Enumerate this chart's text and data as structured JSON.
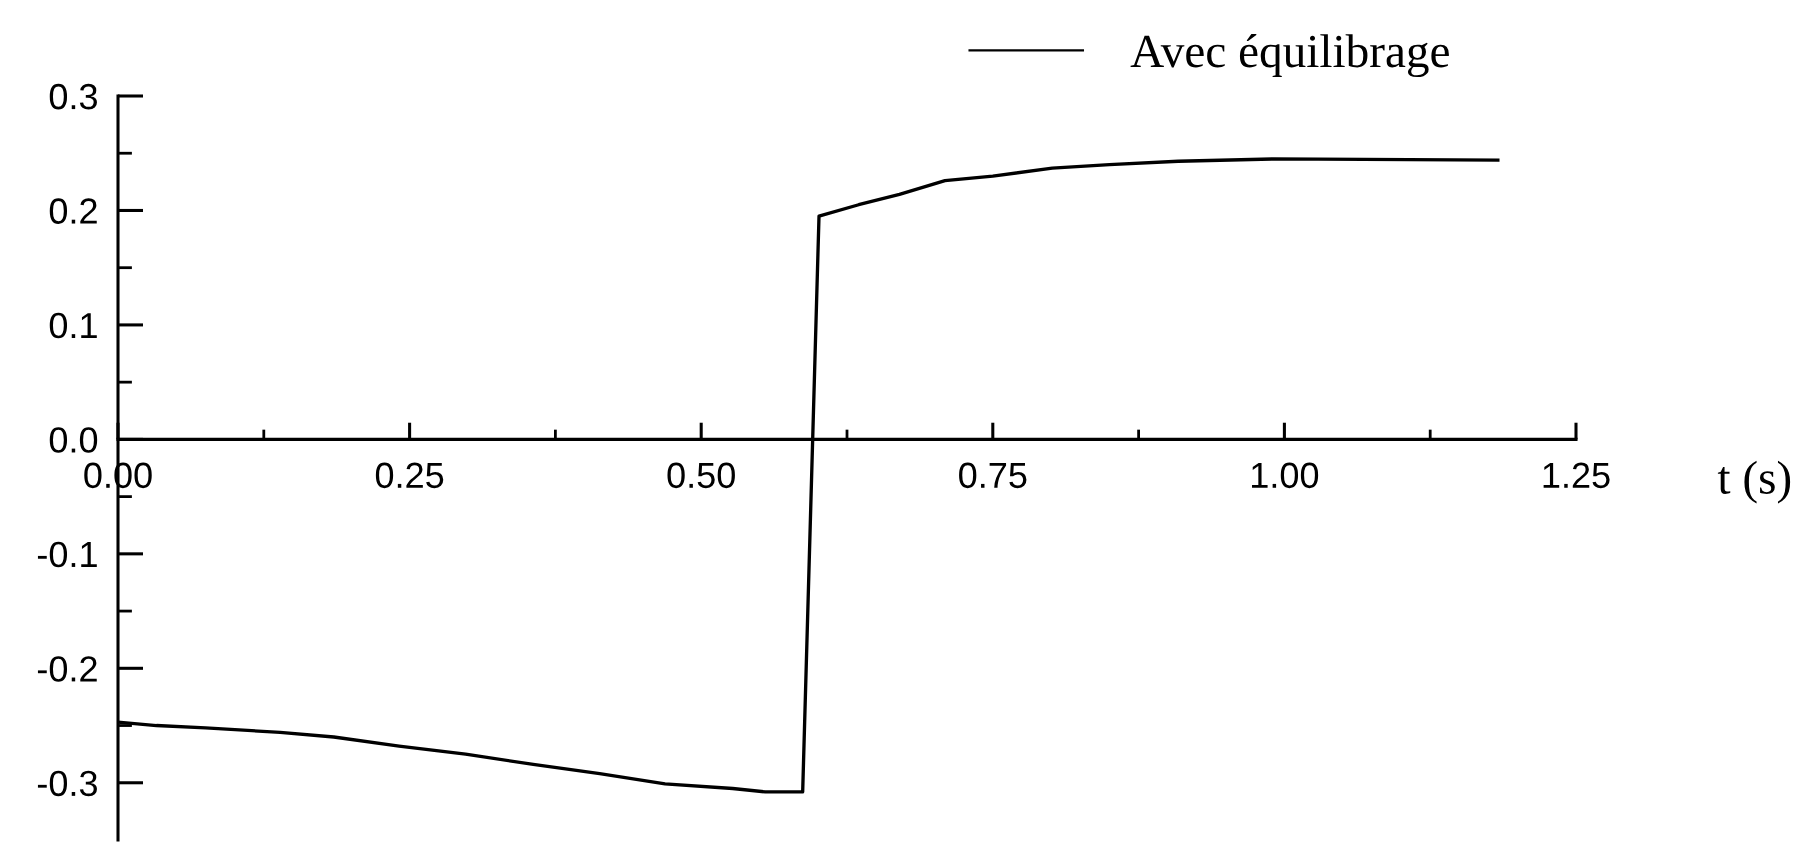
{
  "chart_data": {
    "type": "line",
    "xlabel": "t (s)",
    "series": [
      {
        "name": "Avec équilibrage",
        "color": "#000000",
        "x": [
          0,
          0.033,
          0.075,
          0.139,
          0.185,
          0.241,
          0.298,
          0.356,
          0.413,
          0.469,
          0.527,
          0.555,
          0.584,
          0.587,
          0.601,
          0.635,
          0.67,
          0.709,
          0.75,
          0.801,
          0.85,
          0.909,
          0.99,
          1.183
        ],
        "values": [
          -0.247,
          -0.25,
          -0.252,
          -0.256,
          -0.26,
          -0.268,
          -0.275,
          -0.284,
          -0.292,
          -0.301,
          -0.305,
          -0.308,
          -0.308,
          -0.308,
          0.195,
          0.205,
          0.214,
          0.226,
          0.23,
          0.237,
          0.24,
          0.243,
          0.245,
          0.244
        ]
      }
    ],
    "xlim": [
      0,
      1.25
    ],
    "xticks": [
      {
        "value": 0,
        "label": "0.00"
      },
      {
        "value": 0.125,
        "label": null
      },
      0.25,
      {
        "value": 0.375,
        "label": null
      },
      {
        "value": 0.5,
        "label": "0.50"
      },
      {
        "value": 0.625,
        "label": null
      },
      0.75,
      {
        "value": 0.875,
        "label": null
      },
      {
        "value": 1.0,
        "label": "1.00"
      },
      {
        "value": 1.125,
        "label": null
      },
      1.25
    ],
    "ylim": [
      -0.35,
      0.3
    ],
    "yticks": [
      0.3,
      {
        "value": 0.25,
        "label": null
      },
      0.2,
      {
        "value": 0.15,
        "label": null
      },
      0.1,
      {
        "value": 0.05,
        "label": null
      },
      {
        "value": 0,
        "label": "0.0"
      },
      {
        "value": -0.05,
        "label": null
      },
      -0.1,
      {
        "value": -0.15,
        "label": null
      },
      -0.2,
      {
        "value": -0.25,
        "label": null
      },
      -0.3
    ],
    "grid": false,
    "legend": "top",
    "marker": "none",
    "line_style": "solid"
  }
}
